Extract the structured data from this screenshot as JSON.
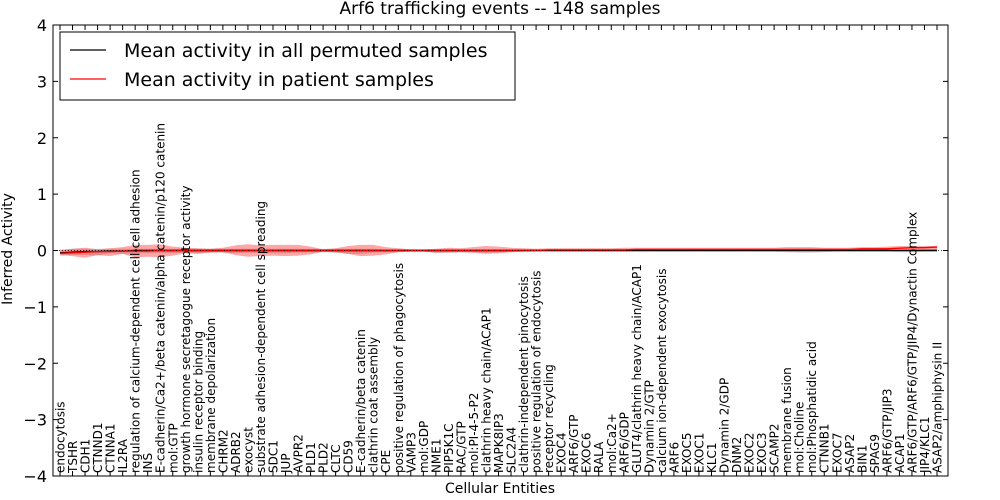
{
  "chart_data": {
    "type": "line",
    "title": "Arf6 trafficking events -- 148 samples",
    "xlabel": "Cellular Entities",
    "ylabel": "Inferred Activity",
    "ylim": [
      -4,
      4
    ],
    "yticks": [
      -4,
      -3,
      -2,
      -1,
      0,
      1,
      2,
      3,
      4
    ],
    "ytick_labels": [
      "−4",
      "−3",
      "−2",
      "−1",
      "0",
      "1",
      "2",
      "3",
      "4"
    ],
    "legend_position": "top-left",
    "categories": [
      "endocytosis",
      "TSHR",
      "CDH1",
      "CTNND1",
      "CTNNA1",
      "IL2RA",
      "regulation of calcium-dependent cell-cell adhesion",
      "INS",
      "E-cadherin/Ca2+/beta catenin/alpha catenin/p120 catenin",
      "mol:GTP",
      "growth hormone secretagogue receptor activity",
      "insulin receptor binding",
      "membrane depolarization",
      "CHRM2",
      "ADRB2",
      "exocyst",
      "substrate adhesion-dependent cell spreading",
      "SDC1",
      "JUP",
      "AVPR2",
      "PLD1",
      "PLD2",
      "CLTC",
      "CD59",
      "E-cadherin/beta catenin",
      "clathrin coat assembly",
      "CPE",
      "positive regulation of phagocytosis",
      "VAMP3",
      "mol:GDP",
      "NME1",
      "PIP5K1C",
      "RAC/GTP",
      "mol:PI-4-5-P2",
      "clathrin heavy chain/ACAP1",
      "MAPK8IP3",
      "SLC2A4",
      "clathrin-independent pinocytosis",
      "positive regulation of endocytosis",
      "receptor recycling",
      "EXOC4",
      "ARF6/GTP",
      "EXOC6",
      "RALA",
      "mol:Ca2+",
      "ARF6/GDP",
      "GLUT4/clathrin heavy chain/ACAP1",
      "Dynamin 2/GTP",
      "calcium ion-dependent exocytosis",
      "ARF6",
      "EXOC5",
      "EXOC1",
      "KLC1",
      "Dynamin 2/GDP",
      "DNM2",
      "EXOC2",
      "EXOC3",
      "SCAMP2",
      "membrane fusion",
      "mol:Choline",
      "mol:Phosphatidic acid",
      "CTNNB1",
      "EXOC7",
      "ASAP2",
      "BIN1",
      "SPAG9",
      "ARF6/GTP/JIP3",
      "ACAP1",
      "ARF6/GTP/ARF6/GTP/JIP4/Dynactin Complex",
      "JIP4/KLC1",
      "ASAP2/amphiphysin II"
    ],
    "series": [
      {
        "name": "Mean activity in all permuted samples",
        "color": "#000000",
        "values": [
          -0.04,
          -0.03,
          -0.02,
          -0.02,
          -0.01,
          -0.01,
          0.0,
          0.0,
          0.0,
          0.0,
          0.0,
          0.0,
          0.0,
          0.0,
          0.0,
          0.0,
          0.0,
          0.0,
          0.0,
          0.0,
          0.0,
          0.0,
          0.0,
          0.0,
          0.0,
          0.0,
          0.0,
          0.0,
          0.0,
          0.0,
          0.0,
          0.0,
          0.0,
          0.0,
          0.0,
          0.0,
          0.0,
          0.0,
          0.0,
          0.0,
          0.0,
          0.0,
          0.0,
          0.0,
          0.0,
          0.0,
          0.0,
          0.0,
          0.0,
          0.0,
          0.0,
          0.0,
          0.0,
          0.0,
          0.0,
          0.0,
          0.0,
          0.0,
          0.0,
          0.0,
          0.0,
          0.0,
          0.0,
          0.0,
          0.0,
          0.0,
          0.0,
          0.0,
          0.0,
          0.0,
          0.0
        ],
        "lower": [
          -0.09,
          -0.08,
          -0.08,
          -0.09,
          -0.05,
          -0.06,
          -0.05,
          -0.05,
          -0.05,
          -0.05,
          -0.04,
          -0.05,
          -0.03,
          -0.04,
          -0.05,
          -0.04,
          -0.05,
          -0.05,
          -0.05,
          -0.04,
          -0.03,
          -0.03,
          -0.04,
          -0.06,
          -0.06,
          -0.04,
          -0.03,
          -0.02,
          -0.02,
          -0.02,
          -0.04,
          -0.05,
          -0.03,
          -0.03,
          -0.04,
          -0.03,
          -0.02,
          -0.02,
          -0.01,
          -0.01,
          -0.02,
          -0.02,
          -0.02,
          -0.02,
          -0.02,
          -0.02,
          -0.02,
          -0.02,
          -0.02,
          -0.02,
          -0.02,
          -0.02,
          -0.02,
          -0.02,
          -0.02,
          -0.02,
          -0.02,
          -0.02,
          -0.03,
          -0.04,
          -0.04,
          -0.03,
          -0.02,
          -0.02,
          -0.02,
          -0.02,
          -0.02,
          -0.03,
          -0.03,
          -0.02,
          -0.02
        ],
        "upper": [
          0.02,
          0.03,
          0.03,
          0.03,
          0.03,
          0.03,
          0.03,
          0.03,
          0.03,
          0.03,
          0.03,
          0.03,
          0.03,
          0.03,
          0.03,
          0.03,
          0.03,
          0.03,
          0.03,
          0.03,
          0.03,
          0.03,
          0.03,
          0.03,
          0.03,
          0.03,
          0.02,
          0.02,
          0.02,
          0.02,
          0.02,
          0.02,
          0.02,
          0.02,
          0.02,
          0.02,
          0.02,
          0.02,
          0.02,
          0.02,
          0.02,
          0.02,
          0.02,
          0.02,
          0.02,
          0.02,
          0.02,
          0.02,
          0.02,
          0.02,
          0.02,
          0.02,
          0.02,
          0.02,
          0.02,
          0.02,
          0.02,
          0.02,
          0.02,
          0.02,
          0.02,
          0.02,
          0.02,
          0.02,
          0.02,
          0.02,
          0.02,
          0.02,
          0.02,
          0.02,
          0.02
        ]
      },
      {
        "name": "Mean activity in patient samples",
        "color": "#ff0000",
        "values": [
          -0.05,
          -0.04,
          -0.03,
          -0.02,
          -0.02,
          -0.01,
          -0.01,
          -0.01,
          0.0,
          0.0,
          0.0,
          0.0,
          0.0,
          0.0,
          0.0,
          0.0,
          0.0,
          0.0,
          0.0,
          0.0,
          0.0,
          0.0,
          0.0,
          0.0,
          0.0,
          0.0,
          0.0,
          0.0,
          0.0,
          0.0,
          0.0,
          0.0,
          0.0,
          0.0,
          0.0,
          0.0,
          0.0,
          0.0,
          0.0,
          0.01,
          0.01,
          0.01,
          0.01,
          0.01,
          0.01,
          0.01,
          0.02,
          0.02,
          0.02,
          0.02,
          0.02,
          0.02,
          0.02,
          0.02,
          0.02,
          0.02,
          0.02,
          0.02,
          0.02,
          0.02,
          0.02,
          0.02,
          0.02,
          0.02,
          0.03,
          0.03,
          0.03,
          0.04,
          0.05,
          0.05,
          0.06
        ],
        "lower": [
          -0.08,
          -0.1,
          -0.13,
          -0.08,
          -0.1,
          -0.06,
          -0.12,
          -0.11,
          -0.12,
          -0.09,
          -0.05,
          -0.06,
          -0.04,
          -0.03,
          -0.08,
          -0.11,
          -0.1,
          -0.09,
          -0.1,
          -0.09,
          -0.07,
          -0.02,
          -0.03,
          -0.06,
          -0.1,
          -0.09,
          -0.07,
          -0.03,
          -0.02,
          -0.02,
          -0.04,
          -0.03,
          -0.03,
          -0.04,
          -0.06,
          -0.05,
          -0.03,
          -0.02,
          -0.01,
          -0.01,
          -0.01,
          -0.01,
          -0.01,
          -0.01,
          -0.01,
          0.0,
          0.0,
          0.0,
          0.0,
          0.0,
          0.0,
          0.0,
          0.0,
          0.0,
          0.0,
          0.0,
          0.0,
          0.0,
          -0.01,
          -0.01,
          -0.01,
          -0.01,
          0.0,
          0.0,
          0.0,
          0.0,
          0.0,
          0.0,
          0.0,
          0.0,
          0.0
        ],
        "upper": [
          0.0,
          0.03,
          0.05,
          0.02,
          0.04,
          0.06,
          0.1,
          0.1,
          0.11,
          0.07,
          0.05,
          0.04,
          0.03,
          0.05,
          0.09,
          0.11,
          0.09,
          0.1,
          0.1,
          0.1,
          0.07,
          0.02,
          0.04,
          0.08,
          0.1,
          0.1,
          0.06,
          0.04,
          0.02,
          0.02,
          0.03,
          0.05,
          0.04,
          0.06,
          0.08,
          0.07,
          0.05,
          0.04,
          0.03,
          0.04,
          0.04,
          0.04,
          0.04,
          0.04,
          0.04,
          0.05,
          0.05,
          0.05,
          0.05,
          0.05,
          0.05,
          0.05,
          0.05,
          0.05,
          0.05,
          0.05,
          0.05,
          0.05,
          0.06,
          0.06,
          0.06,
          0.05,
          0.05,
          0.05,
          0.06,
          0.06,
          0.07,
          0.08,
          0.08,
          0.08,
          0.08
        ]
      }
    ]
  }
}
